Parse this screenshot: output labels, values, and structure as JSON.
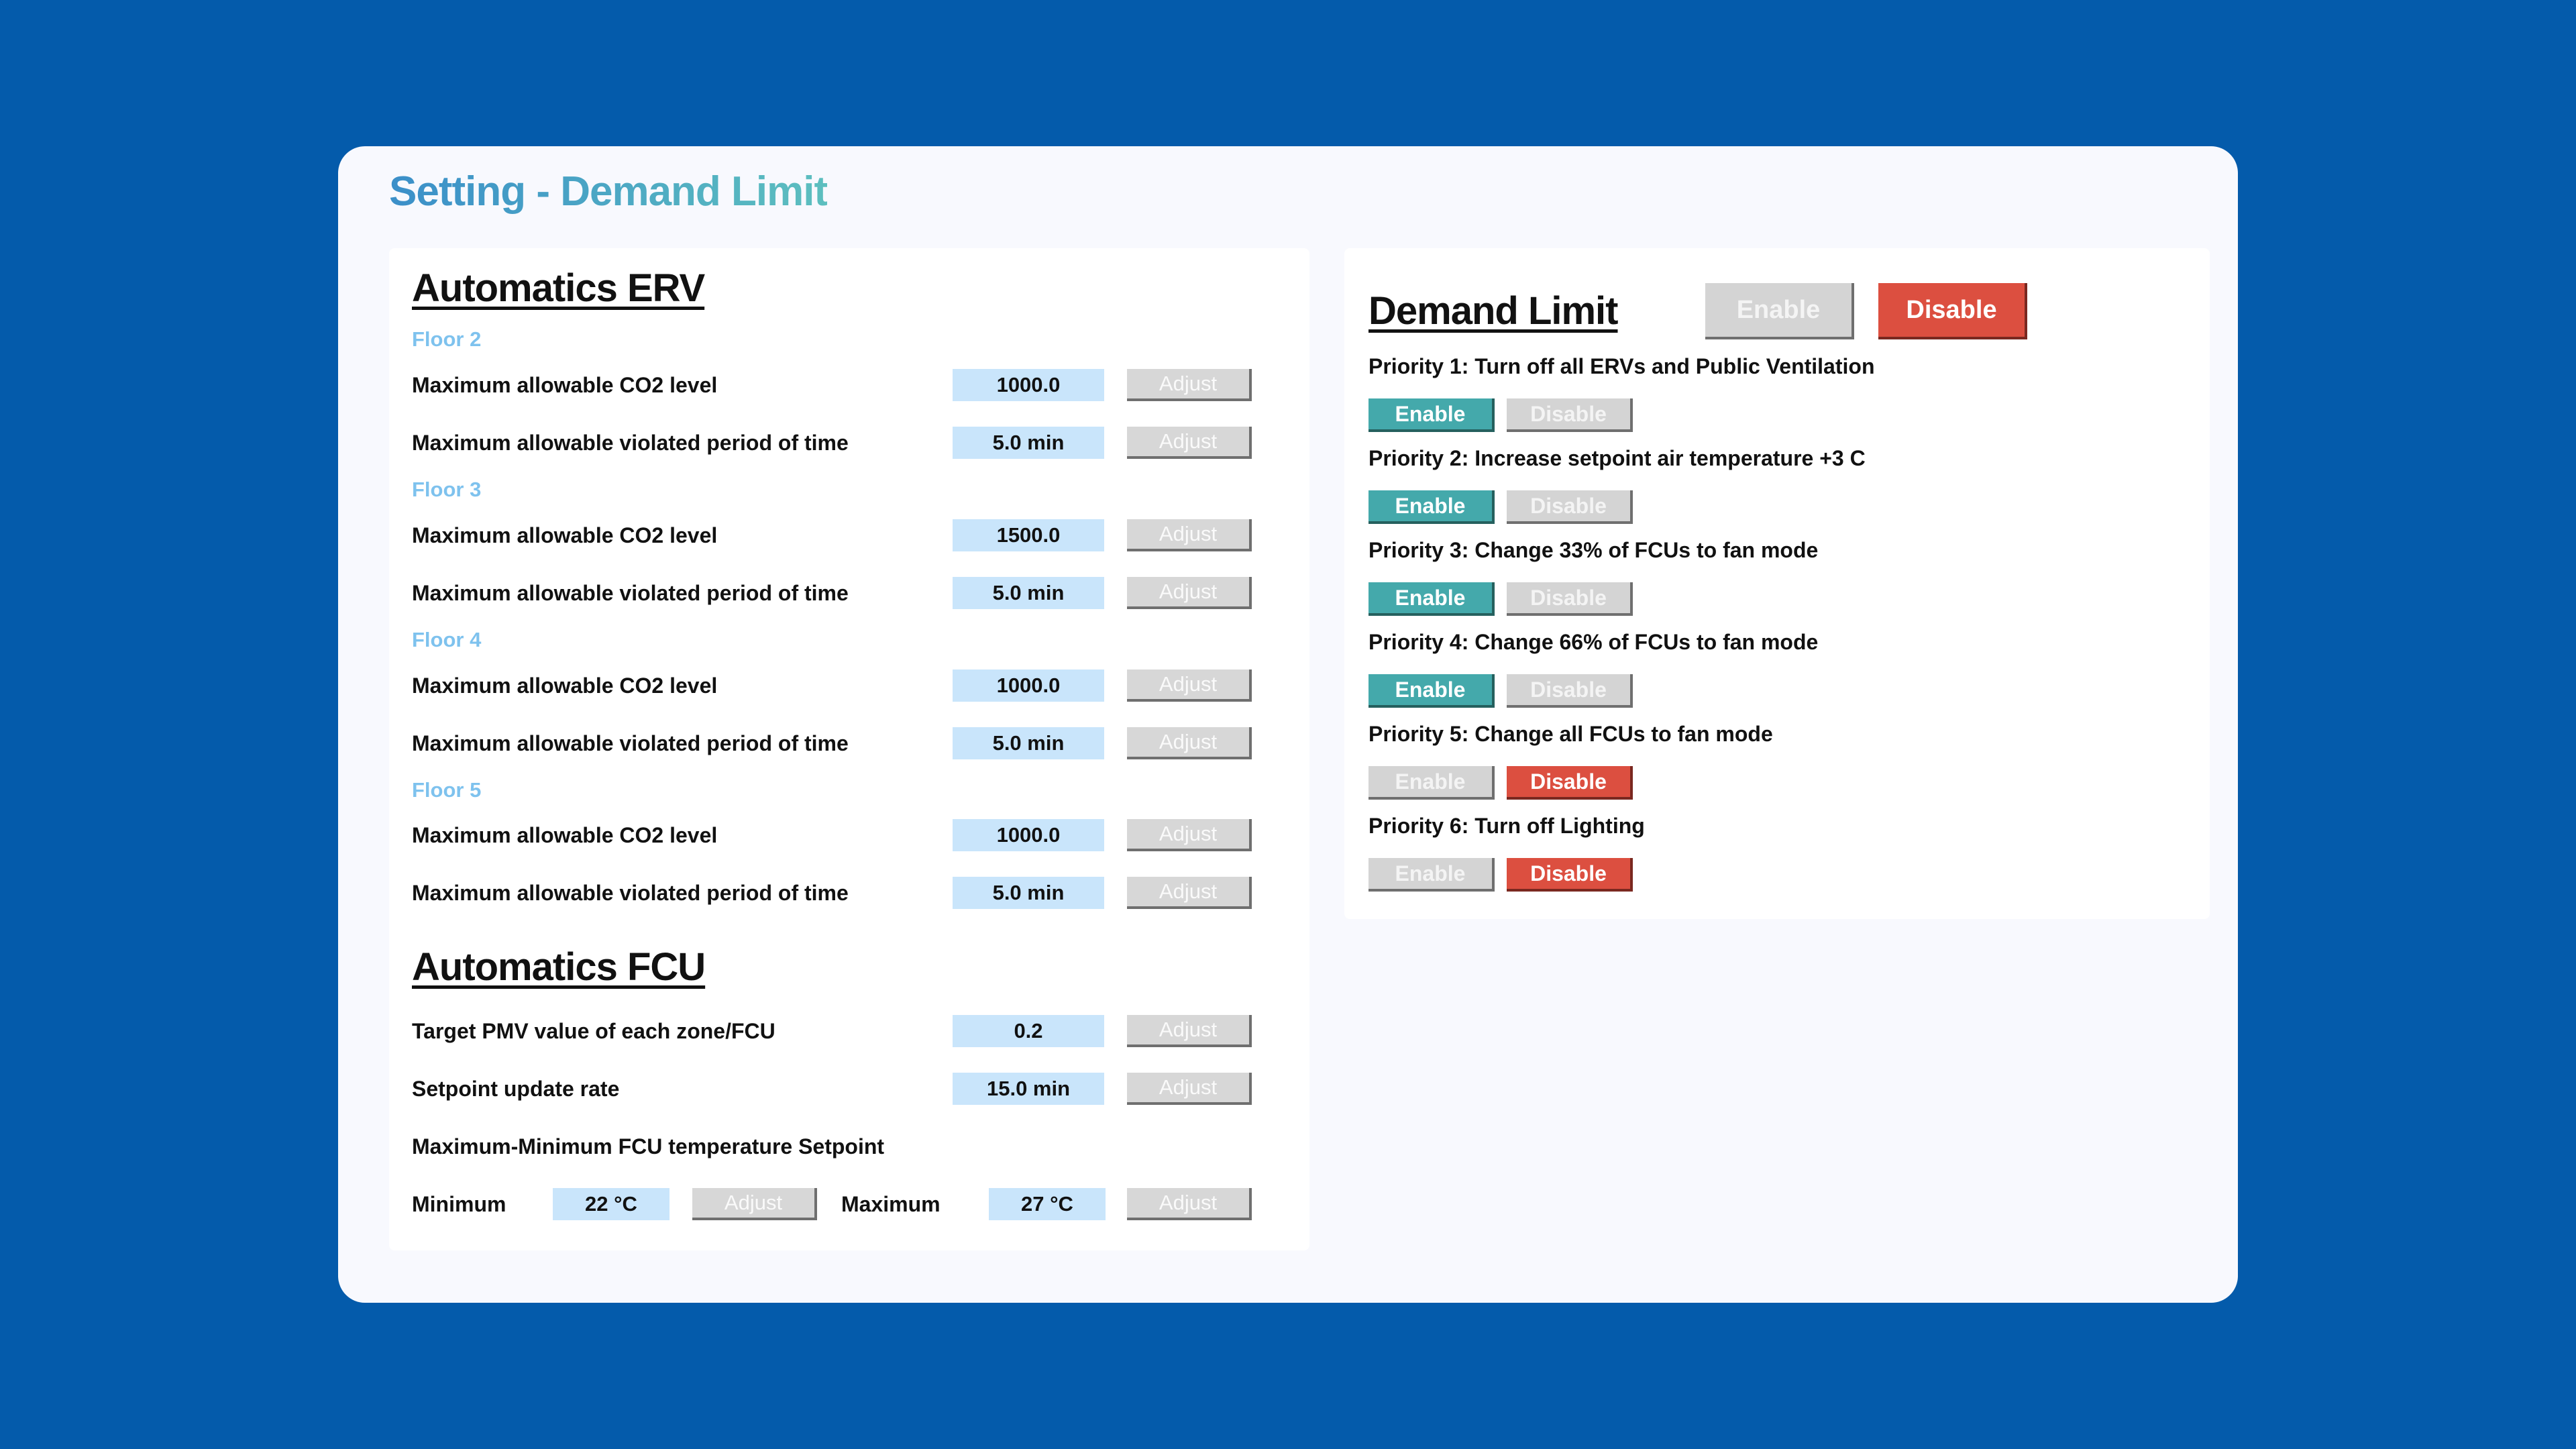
{
  "window": {
    "title": "Setting - Demand Limit"
  },
  "erv": {
    "title": "Automatics ERV",
    "floors": [
      {
        "label": "Floor 2",
        "co2_label": "Maximum allowable CO2 level",
        "co2_value": "1000.0",
        "period_label": "Maximum allowable violated period of time",
        "period_value": "5.0 min"
      },
      {
        "label": "Floor 3",
        "co2_label": "Maximum allowable CO2 level",
        "co2_value": "1500.0",
        "period_label": "Maximum allowable violated period of time",
        "period_value": "5.0 min"
      },
      {
        "label": "Floor 4",
        "co2_label": "Maximum allowable CO2 level",
        "co2_value": "1000.0",
        "period_label": "Maximum allowable violated period of time",
        "period_value": "5.0 min"
      },
      {
        "label": "Floor 5",
        "co2_label": "Maximum allowable CO2 level",
        "co2_value": "1000.0",
        "period_label": "Maximum allowable violated period of time",
        "period_value": "5.0 min"
      }
    ],
    "adjust_label": "Adjust"
  },
  "fcu": {
    "title": "Automatics FCU",
    "pmv_label": "Target PMV value of each zone/FCU",
    "pmv_value": "0.2",
    "rate_label": "Setpoint update rate",
    "rate_value": "15.0 min",
    "range_label": "Maximum-Minimum FCU temperature Setpoint",
    "min_label": "Minimum",
    "min_value": "22 °C",
    "max_label": "Maximum",
    "max_value": "27 °C",
    "adjust_label": "Adjust"
  },
  "demand": {
    "title": "Demand Limit",
    "enable_label": "Enable",
    "disable_label": "Disable",
    "master_state": "disabled",
    "priorities": [
      {
        "label": "Priority 1: Turn off all ERVs and Public Ventilation",
        "state": "enabled"
      },
      {
        "label": "Priority 2: Increase setpoint air temperature +3 C",
        "state": "enabled"
      },
      {
        "label": "Priority 3: Change 33% of FCUs to fan mode",
        "state": "enabled"
      },
      {
        "label": "Priority 4: Change 66% of FCUs to fan mode",
        "state": "enabled"
      },
      {
        "label": "Priority 5: Change all FCUs to fan mode",
        "state": "disabled"
      },
      {
        "label": "Priority 6: Turn off Lighting",
        "state": "disabled"
      }
    ]
  },
  "colors": {
    "background": "#045bab",
    "enable_active": "#44a9ab",
    "disable_active": "#dc4f40",
    "inactive": "#d4d4d4",
    "value_box": "#c9e5fb",
    "floor_label": "#7ec2ee"
  }
}
